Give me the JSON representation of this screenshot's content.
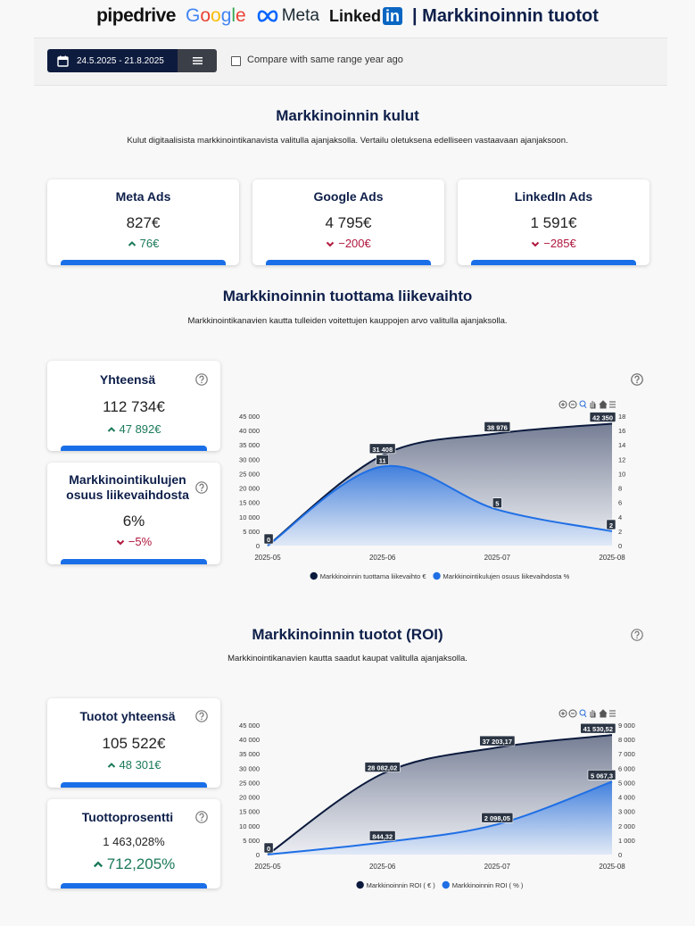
{
  "header": {
    "logos": [
      "pipedrive",
      "Google",
      "Meta",
      "Linked",
      "in"
    ],
    "title": "| Markkinoinnin tuotot"
  },
  "toolbar": {
    "date_range": "24.5.2025 - 21.8.2025",
    "compare_label": "Compare with same range year ago"
  },
  "sections": [
    {
      "title": "Markkinoinnin kulut",
      "description": "Kulut digitaalisista markkinointikanavista valitulla ajanjaksolla. Vertailu oletuksena edelliseen vastaavaan ajanjaksoon.",
      "cards": [
        {
          "title": "Meta Ads",
          "value": "827€",
          "change": "76€",
          "direction": "up"
        },
        {
          "title": "Google Ads",
          "value": "4 795€",
          "change": "−200€",
          "direction": "down"
        },
        {
          "title": "LinkedIn Ads",
          "value": "1 591€",
          "change": "−285€",
          "direction": "down"
        }
      ]
    },
    {
      "title": "Markkinoinnin tuottama liikevaihto",
      "description": "Markkinointikanavien kautta tulleiden voitettujen kauppojen arvo valitulla ajanjaksolla.",
      "cards": [
        {
          "title": "Yhteensä",
          "value": "112 734€",
          "change": "47 892€",
          "direction": "up"
        },
        {
          "title": "Markkinointikulujen osuus liikevaihdosta",
          "value": "6%",
          "change": "−5%",
          "direction": "down"
        }
      ]
    },
    {
      "title": "Markkinoinnin tuotot (ROI)",
      "description": "Markkinointikanavien kautta saadut kaupat valitulla ajanjaksolla.",
      "cards": [
        {
          "title": "Tuotot yhteensä",
          "value": "105 522€",
          "change": "48 301€",
          "direction": "up"
        },
        {
          "title": "Tuottoprosentti",
          "value": "1 463,028%",
          "change": "712,205%",
          "direction": "up"
        }
      ]
    }
  ],
  "chart_data": [
    {
      "type": "area",
      "categories": [
        "2025-05",
        "2025-06",
        "2025-07",
        "2025-08"
      ],
      "series": [
        {
          "name": "Markkinoinnin tuottama liikevaihto €",
          "color": "#0b1a3d",
          "values": [
            0,
            31408,
            38976,
            42350
          ],
          "value_labels": [
            "0",
            "31 408",
            "38 976",
            "42 350"
          ]
        },
        {
          "name": "Markkinointikulujen osuus liikevaihdosta %",
          "color": "#1f6fe5",
          "axis": "y2",
          "values": [
            0,
            11,
            5,
            2
          ]
        }
      ],
      "ylim": [
        0,
        45000
      ],
      "yticks": [
        0,
        {
          "value": 5000,
          "label": "5 000"
        },
        {
          "value": 10000,
          "label": "10 000"
        },
        {
          "value": 15000,
          "label": "15 000"
        },
        {
          "value": 20000,
          "label": "20 000"
        },
        {
          "value": 25000,
          "label": "25 000"
        },
        {
          "value": 30000,
          "label": "30 000"
        },
        {
          "value": 35000,
          "label": "35 000"
        },
        {
          "value": 40000,
          "label": "40 000"
        },
        {
          "value": 45000,
          "label": "45 000"
        }
      ],
      "y2lim": [
        0,
        18
      ],
      "y2ticks": [
        0,
        2,
        4,
        6,
        8,
        10,
        12,
        14,
        16,
        18
      ],
      "grid": false,
      "legend": "bottom"
    },
    {
      "type": "area",
      "categories": [
        "2025-05",
        "2025-06",
        "2025-07",
        "2025-08"
      ],
      "series": [
        {
          "name": "Markkinoinnin ROI ( € )",
          "color": "#0b1a3d",
          "values": [
            0,
            28082.02,
            37203.17,
            41530.52
          ],
          "value_labels": [
            "0",
            "28 082,02",
            "37 203,17",
            "41 530,52"
          ]
        },
        {
          "name": "Markkinoinnin ROI ( % )",
          "color": "#1f6fe5",
          "axis": "y2",
          "values": [
            0,
            844.32,
            2098.05,
            5067.3
          ],
          "value_labels": [
            "0",
            "844,32",
            "2 098,05",
            "5 067,3"
          ]
        }
      ],
      "ylim": [
        0,
        45000
      ],
      "yticks": [
        0,
        {
          "value": 5000,
          "label": "5 000"
        },
        {
          "value": 10000,
          "label": "10 000"
        },
        {
          "value": 15000,
          "label": "15 000"
        },
        {
          "value": 20000,
          "label": "20 000"
        },
        {
          "value": 25000,
          "label": "25 000"
        },
        {
          "value": 30000,
          "label": "30 000"
        },
        {
          "value": 35000,
          "label": "35 000"
        },
        {
          "value": 40000,
          "label": "40 000"
        },
        {
          "value": 45000,
          "label": "45 000"
        }
      ],
      "y2lim": [
        0,
        9000
      ],
      "y2ticks": [
        0,
        {
          "value": 1000,
          "label": "1 000"
        },
        {
          "value": 2000,
          "label": "2 000"
        },
        {
          "value": 3000,
          "label": "3 000"
        },
        {
          "value": 4000,
          "label": "4 000"
        },
        {
          "value": 5000,
          "label": "5 000"
        },
        {
          "value": 6000,
          "label": "6 000"
        },
        {
          "value": 7000,
          "label": "7 000"
        },
        {
          "value": 8000,
          "label": "8 000"
        },
        {
          "value": 9000,
          "label": "9 000"
        }
      ],
      "grid": false,
      "legend": "bottom"
    }
  ]
}
